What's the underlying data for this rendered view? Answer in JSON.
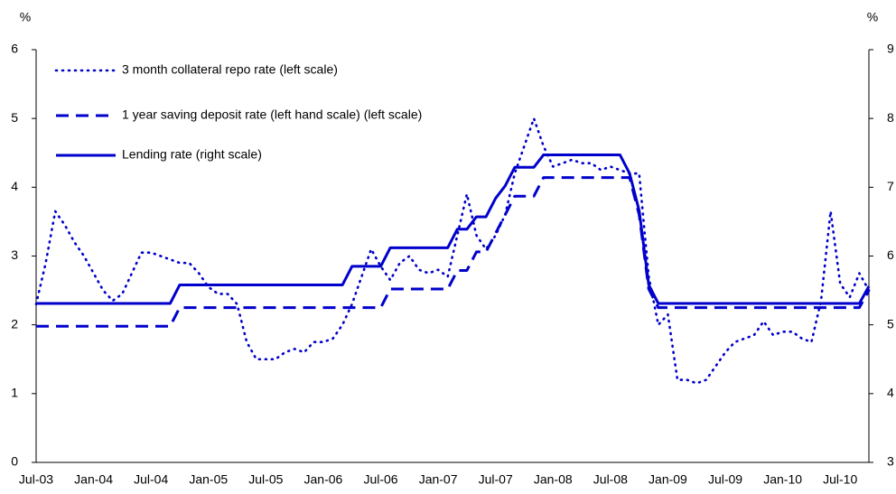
{
  "chart_data": {
    "type": "line",
    "y_label": "%",
    "y2_label": "%",
    "categories": [
      "Jul-03",
      null,
      null,
      null,
      null,
      null,
      "Jan-04",
      null,
      null,
      null,
      null,
      null,
      "Jul-04",
      null,
      null,
      null,
      null,
      null,
      "Jan-05",
      null,
      null,
      null,
      null,
      null,
      "Jul-05",
      null,
      null,
      null,
      null,
      null,
      "Jan-06",
      null,
      null,
      null,
      null,
      null,
      "Jul-06",
      null,
      null,
      null,
      null,
      null,
      "Jan-07",
      null,
      null,
      null,
      null,
      null,
      "Jul-07",
      null,
      null,
      null,
      null,
      null,
      "Jan-08",
      null,
      null,
      null,
      null,
      null,
      "Jul-08",
      null,
      null,
      null,
      null,
      null,
      "Jan-09",
      null,
      null,
      null,
      null,
      null,
      "Jul-09",
      null,
      null,
      null,
      null,
      null,
      "Jan-10",
      null,
      null,
      null,
      null,
      null,
      "Jul-10",
      null,
      null,
      null
    ],
    "ylim": [
      0,
      6
    ],
    "yticks": [
      0,
      1,
      2,
      3,
      4,
      5,
      6
    ],
    "y2lim": [
      3,
      9
    ],
    "y2ticks": [
      3,
      4,
      5,
      6,
      7,
      8,
      9
    ],
    "legend": "upper left",
    "grid": false,
    "series": [
      {
        "name": "3 month collateral repo rate (left scale)",
        "color": "#0000CC",
        "dash": "dotted",
        "values": [
          2.3,
          2.9,
          3.65,
          3.45,
          3.2,
          3.0,
          2.75,
          2.5,
          2.35,
          2.45,
          2.75,
          3.05,
          3.05,
          3.0,
          2.95,
          2.9,
          2.9,
          2.75,
          2.55,
          2.45,
          2.45,
          2.3,
          1.75,
          1.5,
          1.5,
          1.5,
          1.6,
          1.65,
          1.6,
          1.75,
          1.75,
          1.8,
          2.0,
          2.3,
          2.7,
          3.1,
          2.85,
          2.65,
          2.9,
          3.0,
          2.8,
          2.75,
          2.8,
          2.7,
          3.3,
          3.9,
          3.3,
          3.1,
          3.3,
          3.6,
          4.2,
          4.6,
          5.0,
          4.6,
          4.3,
          4.35,
          4.4,
          4.35,
          4.35,
          4.25,
          4.3,
          4.25,
          4.2,
          4.2,
          2.7,
          2.0,
          2.15,
          1.2,
          1.2,
          1.15,
          1.2,
          1.4,
          1.6,
          1.75,
          1.8,
          1.85,
          2.05,
          1.85,
          1.9,
          1.9,
          1.8,
          1.75,
          2.35,
          3.65,
          2.6,
          2.4,
          2.75,
          2.5
        ]
      },
      {
        "name": "1 year saving deposit rate (left hand scale) (left scale)",
        "color": "#0000CC",
        "dash": "dashed",
        "values": [
          1.98,
          1.98,
          1.98,
          1.98,
          1.98,
          1.98,
          1.98,
          1.98,
          1.98,
          1.98,
          1.98,
          1.98,
          1.98,
          1.98,
          1.98,
          2.25,
          2.25,
          2.25,
          2.25,
          2.25,
          2.25,
          2.25,
          2.25,
          2.25,
          2.25,
          2.25,
          2.25,
          2.25,
          2.25,
          2.25,
          2.25,
          2.25,
          2.25,
          2.25,
          2.25,
          2.25,
          2.25,
          2.52,
          2.52,
          2.52,
          2.52,
          2.52,
          2.52,
          2.52,
          2.79,
          2.79,
          3.06,
          3.06,
          3.33,
          3.6,
          3.87,
          3.87,
          3.87,
          4.14,
          4.14,
          4.14,
          4.14,
          4.14,
          4.14,
          4.14,
          4.14,
          4.14,
          4.14,
          3.6,
          2.52,
          2.25,
          2.25,
          2.25,
          2.25,
          2.25,
          2.25,
          2.25,
          2.25,
          2.25,
          2.25,
          2.25,
          2.25,
          2.25,
          2.25,
          2.25,
          2.25,
          2.25,
          2.25,
          2.25,
          2.25,
          2.25,
          2.25,
          2.5
        ]
      },
      {
        "name": "Lending rate (right scale)",
        "color": "#0000CC",
        "dash": "solid",
        "axis": "y2",
        "values": [
          5.31,
          5.31,
          5.31,
          5.31,
          5.31,
          5.31,
          5.31,
          5.31,
          5.31,
          5.31,
          5.31,
          5.31,
          5.31,
          5.31,
          5.31,
          5.58,
          5.58,
          5.58,
          5.58,
          5.58,
          5.58,
          5.58,
          5.58,
          5.58,
          5.58,
          5.58,
          5.58,
          5.58,
          5.58,
          5.58,
          5.58,
          5.58,
          5.58,
          5.85,
          5.85,
          5.85,
          5.85,
          6.12,
          6.12,
          6.12,
          6.12,
          6.12,
          6.12,
          6.12,
          6.39,
          6.39,
          6.57,
          6.57,
          6.84,
          7.02,
          7.29,
          7.29,
          7.29,
          7.47,
          7.47,
          7.47,
          7.47,
          7.47,
          7.47,
          7.47,
          7.47,
          7.47,
          7.2,
          6.66,
          5.58,
          5.31,
          5.31,
          5.31,
          5.31,
          5.31,
          5.31,
          5.31,
          5.31,
          5.31,
          5.31,
          5.31,
          5.31,
          5.31,
          5.31,
          5.31,
          5.31,
          5.31,
          5.31,
          5.31,
          5.31,
          5.31,
          5.31,
          5.56
        ]
      }
    ]
  }
}
